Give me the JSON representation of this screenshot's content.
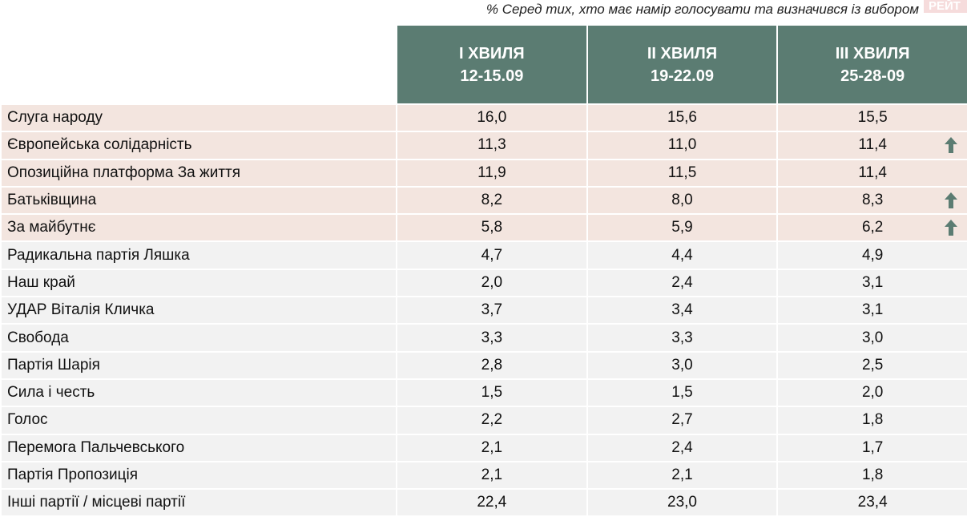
{
  "subtitle": "% Серед тих, хто має намір голосувати та визначився із вибором",
  "logo_text": "РЕЙТ",
  "accent_color": "#5b7c72",
  "highlight_color": "#f3e5df",
  "columns": [
    {
      "wave": "І ХВИЛЯ",
      "dates": "12-15.09"
    },
    {
      "wave": "ІІ ХВИЛЯ",
      "dates": "19-22.09"
    },
    {
      "wave": "ІІІ ХВИЛЯ",
      "dates": "25-28-09"
    }
  ],
  "rows": [
    {
      "party": "Слуга народу",
      "values": [
        "16,0",
        "15,6",
        "15,5"
      ],
      "trend": "",
      "highlight": true
    },
    {
      "party": "Європейська солідарність",
      "values": [
        "11,3",
        "11,0",
        "11,4"
      ],
      "trend": "up",
      "highlight": true
    },
    {
      "party": "Опозиційна платформа За життя",
      "values": [
        "11,9",
        "11,5",
        "11,4"
      ],
      "trend": "",
      "highlight": true
    },
    {
      "party": "Батьківщина",
      "values": [
        "8,2",
        "8,0",
        "8,3"
      ],
      "trend": "up",
      "highlight": true
    },
    {
      "party": "За майбутнє",
      "values": [
        "5,8",
        "5,9",
        "6,2"
      ],
      "trend": "up",
      "highlight": true
    },
    {
      "party": "Радикальна партія Ляшка",
      "values": [
        "4,7",
        "4,4",
        "4,9"
      ],
      "trend": "",
      "highlight": false
    },
    {
      "party": "Наш край",
      "values": [
        "2,0",
        "2,4",
        "3,1"
      ],
      "trend": "",
      "highlight": false
    },
    {
      "party": "УДАР Віталія Кличка",
      "values": [
        "3,7",
        "3,4",
        "3,1"
      ],
      "trend": "",
      "highlight": false
    },
    {
      "party": "Свобода",
      "values": [
        "3,3",
        "3,3",
        "3,0"
      ],
      "trend": "",
      "highlight": false
    },
    {
      "party": "Партія Шарія",
      "values": [
        "2,8",
        "3,0",
        "2,5"
      ],
      "trend": "",
      "highlight": false
    },
    {
      "party": "Сила і честь",
      "values": [
        "1,5",
        "1,5",
        "2,0"
      ],
      "trend": "",
      "highlight": false
    },
    {
      "party": "Голос",
      "values": [
        "2,2",
        "2,7",
        "1,8"
      ],
      "trend": "",
      "highlight": false
    },
    {
      "party": "Перемога Пальчевського",
      "values": [
        "2,1",
        "2,4",
        "1,7"
      ],
      "trend": "",
      "highlight": false
    },
    {
      "party": "Партія Пропозиція",
      "values": [
        "2,1",
        "2,1",
        "1,8"
      ],
      "trend": "",
      "highlight": false
    },
    {
      "party": "Інші партії / місцеві партії",
      "values": [
        "22,4",
        "23,0",
        "23,4"
      ],
      "trend": "",
      "highlight": false
    }
  ]
}
